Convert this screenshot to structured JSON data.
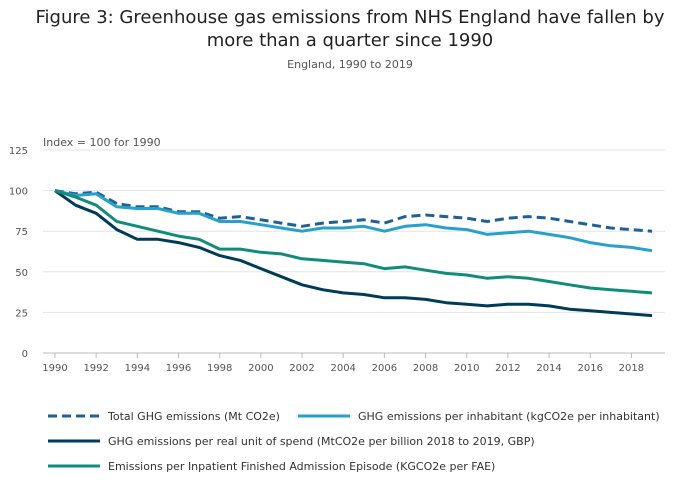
{
  "title_line1": "Figure 3: Greenhouse gas emissions from NHS England have fallen by",
  "title_line2": "more than a quarter since 1990",
  "subtitle": "England, 1990 to 2019",
  "chart_data": {
    "type": "line",
    "ylabel": "Index = 100 for 1990",
    "ylim": [
      0,
      125
    ],
    "yticks": [
      0,
      25,
      50,
      75,
      100,
      125
    ],
    "xlim": [
      1990,
      2019
    ],
    "xticks": [
      1990,
      1992,
      1994,
      1996,
      1998,
      2000,
      2002,
      2004,
      2006,
      2008,
      2010,
      2012,
      2014,
      2016,
      2018
    ],
    "grid": "horizontal",
    "legend_placement": "bottom",
    "x": [
      1990,
      1991,
      1992,
      1993,
      1994,
      1995,
      1996,
      1997,
      1998,
      1999,
      2000,
      2001,
      2002,
      2003,
      2004,
      2005,
      2006,
      2007,
      2008,
      2009,
      2010,
      2011,
      2012,
      2013,
      2014,
      2015,
      2016,
      2017,
      2018,
      2019
    ],
    "series": [
      {
        "name": "Total GHG emissions (Mt CO2e)",
        "color": "#206095",
        "dash": true,
        "values": [
          100,
          98,
          99,
          92,
          90,
          90,
          87,
          87,
          83,
          84,
          82,
          80,
          78,
          80,
          81,
          82,
          80,
          84,
          85,
          84,
          83,
          81,
          83,
          84,
          83,
          81,
          79,
          77,
          76,
          75
        ]
      },
      {
        "name": "GHG emissions per inhabitant (kgCO2e per inhabitant)",
        "color": "#27a0cc",
        "dash": false,
        "values": [
          100,
          97,
          98,
          90,
          89,
          89,
          86,
          86,
          81,
          81,
          79,
          77,
          75,
          77,
          77,
          78,
          75,
          78,
          79,
          77,
          76,
          73,
          74,
          75,
          73,
          71,
          68,
          66,
          65,
          63
        ]
      },
      {
        "name": "GHG emissions per real unit of spend (MtCO2e per billion 2018 to 2019, GBP)",
        "color": "#003c57",
        "dash": false,
        "values": [
          100,
          91,
          86,
          76,
          70,
          70,
          68,
          65,
          60,
          57,
          52,
          47,
          42,
          39,
          37,
          36,
          34,
          34,
          33,
          31,
          30,
          29,
          30,
          30,
          29,
          27,
          26,
          25,
          24,
          23
        ]
      },
      {
        "name": "Emissions per Inpatient Finished Admission Episode (KGCO2e per FAE)",
        "color": "#118c7b",
        "dash": false,
        "values": [
          100,
          96,
          91,
          81,
          78,
          75,
          72,
          70,
          64,
          64,
          62,
          61,
          58,
          57,
          56,
          55,
          52,
          53,
          51,
          49,
          48,
          46,
          47,
          46,
          44,
          42,
          40,
          39,
          38,
          37
        ]
      }
    ]
  }
}
